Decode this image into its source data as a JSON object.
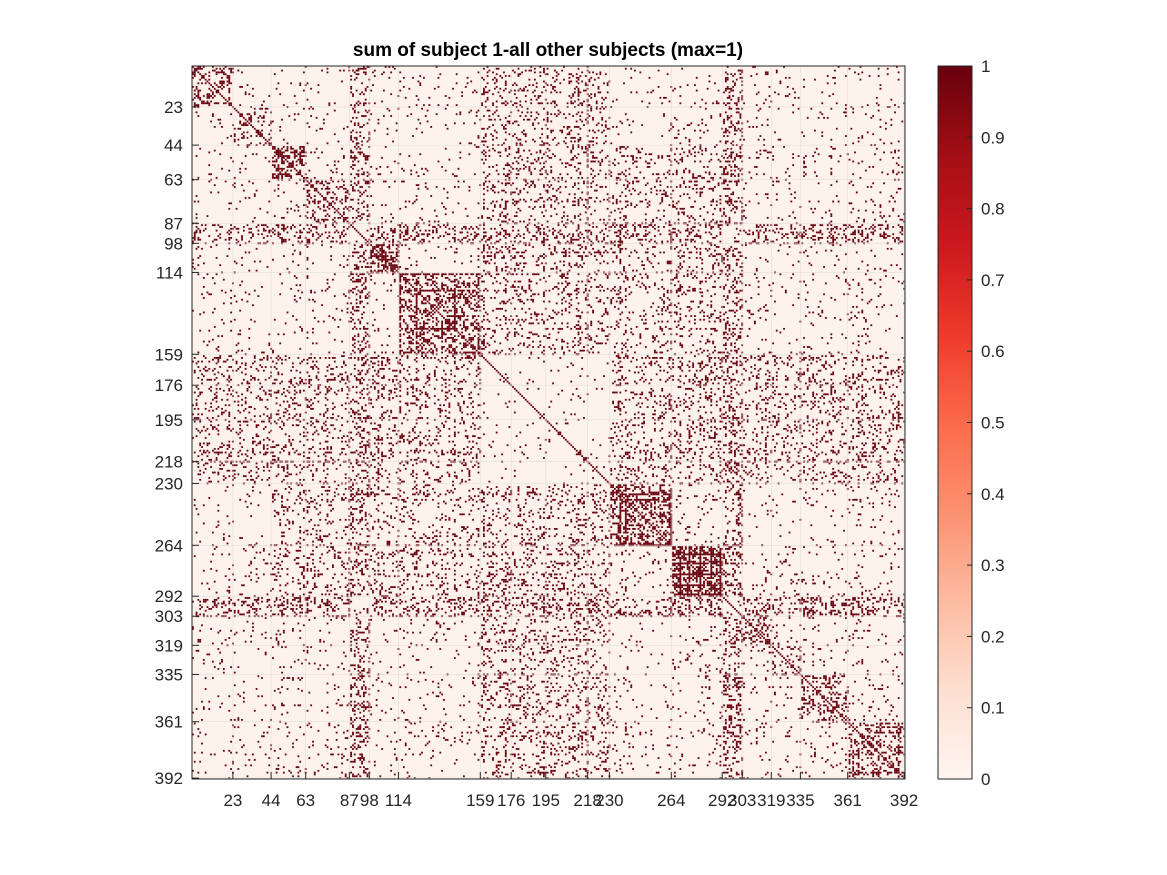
{
  "chart_data": {
    "type": "heatmap",
    "title": "sum of subject 1-all other subjects (max=1)",
    "xlabel": "",
    "ylabel": "",
    "matrix_size": 392,
    "xlim": [
      1,
      392
    ],
    "ylim": [
      1,
      392
    ],
    "x_ticks": [
      23,
      44,
      63,
      87,
      98,
      114,
      159,
      176,
      195,
      218,
      230,
      264,
      292,
      303,
      319,
      335,
      361,
      392
    ],
    "y_ticks": [
      23,
      44,
      63,
      87,
      98,
      114,
      159,
      176,
      195,
      218,
      230,
      264,
      292,
      303,
      319,
      335,
      361,
      392
    ],
    "x_tick_labels": [
      "23",
      "44",
      "63",
      "87",
      "98",
      "114",
      "159",
      "176",
      "195",
      "218",
      "230",
      "264",
      "292",
      "303",
      "319",
      "335",
      "361",
      "392"
    ],
    "y_tick_labels": [
      "23",
      "44",
      "63",
      "87",
      "98",
      "114",
      "159",
      "176",
      "195",
      "218",
      "230",
      "264",
      "292",
      "303",
      "319",
      "335",
      "361",
      "392"
    ],
    "grid": true,
    "colormap": "reds",
    "color_low": "#fdf2ec",
    "color_high": "#67000d",
    "grid_color": "#d9d9d9",
    "clim": [
      0,
      1
    ],
    "colorbar_ticks": [
      0,
      0.1,
      0.2,
      0.3,
      0.4,
      0.5,
      0.6,
      0.7,
      0.8,
      0.9,
      1
    ],
    "colorbar_tick_labels": [
      "0",
      "0.1",
      "0.2",
      "0.3",
      "0.4",
      "0.5",
      "0.6",
      "0.7",
      "0.8",
      "0.9",
      "1"
    ],
    "colorbar_position": "right",
    "values": "binary matrix (0 or 1); main diagonal = 1; dense blocks within modules 44-63, 98-159, 230-292, 303-392"
  }
}
